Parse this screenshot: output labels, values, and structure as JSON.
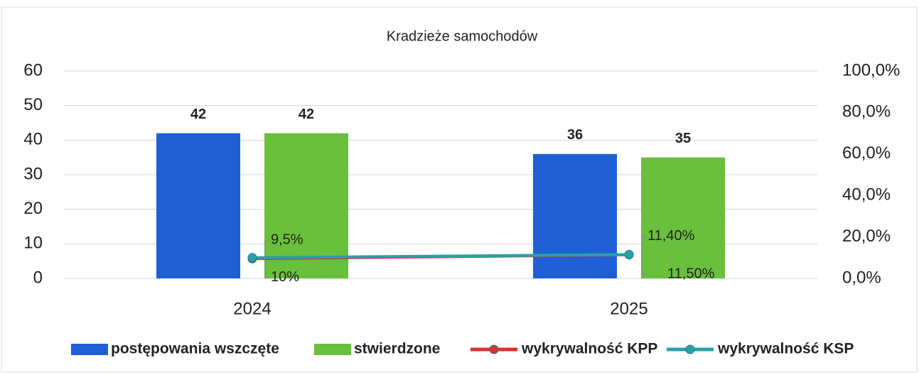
{
  "chart_data": {
    "type": "bar",
    "title": "Kradzieże samochodów",
    "categories": [
      "2024",
      "2025"
    ],
    "series": [
      {
        "name": "postępowania wszczęte",
        "color": "#1f5fd6",
        "values": [
          42,
          36
        ]
      },
      {
        "name": "stwierdzone",
        "color": "#6abf3c",
        "values": [
          42,
          35
        ]
      },
      {
        "name": "wykrywalność KPP",
        "color": "#e03030",
        "type": "line",
        "axis": "y2",
        "values": [
          9.5,
          11.4
        ],
        "value_labels": [
          "9,5%",
          "11,40%"
        ]
      },
      {
        "name": "wykrywalność KSP",
        "color": "#2aa0a8",
        "type": "line",
        "axis": "y2",
        "values": [
          10,
          11.5
        ],
        "value_labels": [
          "10%",
          "11,50%"
        ]
      }
    ],
    "ylim": [
      0,
      60
    ],
    "yticks": [
      0,
      10,
      20,
      30,
      40,
      50,
      60
    ],
    "y2lim": [
      0,
      100
    ],
    "y2ticks": [
      {
        "value": 0,
        "label": "0,0%"
      },
      {
        "value": 20,
        "label": "20,0%"
      },
      {
        "value": 40,
        "label": "40,0%"
      },
      {
        "value": 60,
        "label": "60,0%"
      },
      {
        "value": 80,
        "label": "80,0%"
      },
      {
        "value": 100,
        "label": "100,0%"
      }
    ],
    "grid": true,
    "legend": "bottom"
  }
}
